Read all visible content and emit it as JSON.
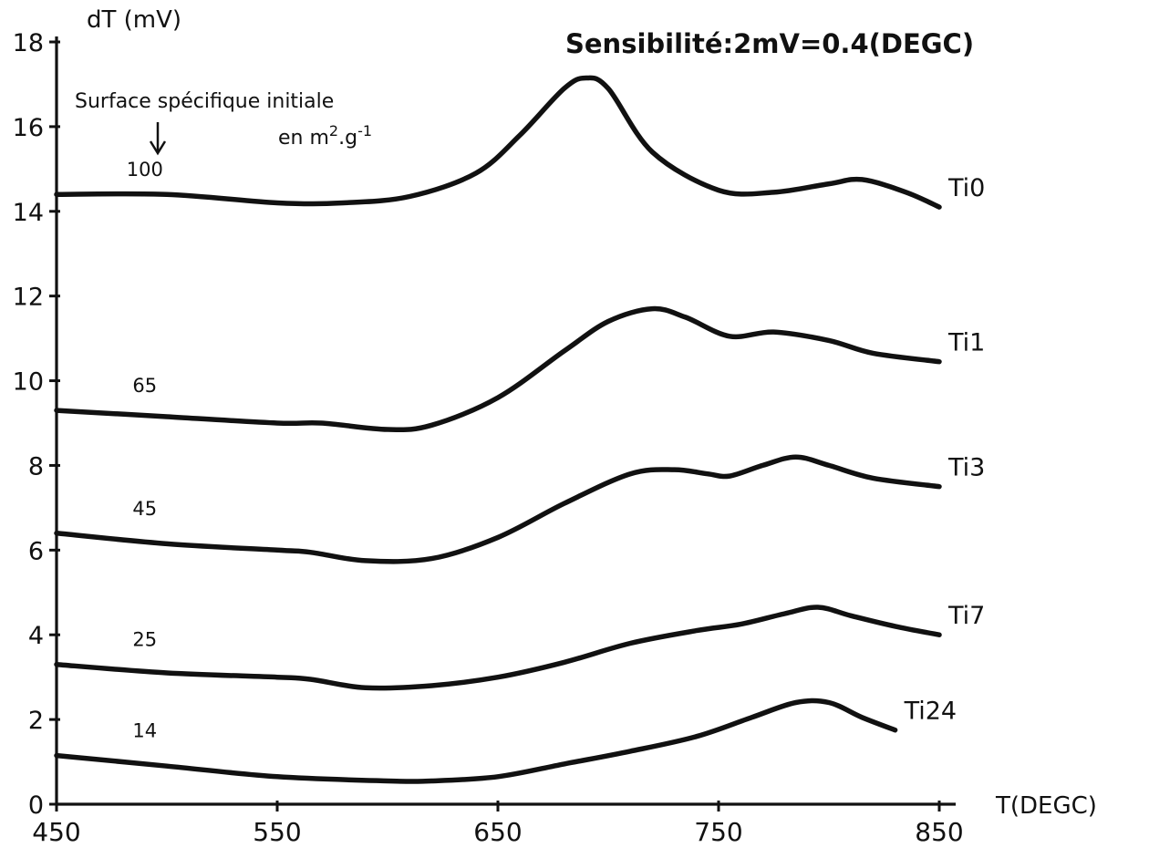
{
  "chart_data": {
    "type": "line",
    "title": "",
    "xlabel": "T(DEGC)",
    "ylabel": "dT (mV)",
    "annotation": "Sensibilité:2mV=0.4(DEGC)",
    "surface_note": {
      "line1": "Surface spécifique initiale",
      "line2_prefix": "en m",
      "line2_exp1": "2",
      "line2_mid": ".g",
      "line2_exp2": "-1"
    },
    "xlim": [
      450,
      850
    ],
    "ylim": [
      0,
      18
    ],
    "xticks": [
      "450",
      "550",
      "650",
      "750",
      "850"
    ],
    "yticks": [
      "0",
      "2",
      "4",
      "6",
      "8",
      "10",
      "12",
      "14",
      "16",
      "18"
    ],
    "grid": false,
    "series": [
      {
        "name": "Ti0",
        "surface": "100",
        "x": [
          450,
          500,
          550,
          580,
          610,
          640,
          660,
          680,
          690,
          700,
          720,
          750,
          775,
          800,
          815,
          835,
          850
        ],
        "y": [
          14.4,
          14.4,
          14.2,
          14.2,
          14.35,
          14.9,
          15.8,
          16.9,
          17.15,
          16.9,
          15.4,
          14.5,
          14.45,
          14.65,
          14.75,
          14.45,
          14.1
        ]
      },
      {
        "name": "Ti1",
        "surface": "65",
        "x": [
          450,
          500,
          550,
          570,
          600,
          620,
          650,
          680,
          700,
          720,
          735,
          755,
          775,
          800,
          820,
          850
        ],
        "y": [
          9.3,
          9.15,
          9.0,
          9.0,
          8.85,
          8.95,
          9.6,
          10.7,
          11.4,
          11.7,
          11.5,
          11.05,
          11.15,
          10.95,
          10.65,
          10.45
        ]
      },
      {
        "name": "Ti3",
        "surface": "45",
        "x": [
          450,
          500,
          550,
          565,
          590,
          620,
          650,
          680,
          710,
          730,
          745,
          755,
          770,
          785,
          800,
          820,
          850
        ],
        "y": [
          6.4,
          6.15,
          6.0,
          5.95,
          5.75,
          5.8,
          6.3,
          7.1,
          7.8,
          7.9,
          7.8,
          7.75,
          8.0,
          8.2,
          8.0,
          7.7,
          7.5
        ]
      },
      {
        "name": "Ti7",
        "surface": "25",
        "x": [
          450,
          500,
          550,
          565,
          590,
          620,
          650,
          680,
          710,
          740,
          760,
          780,
          795,
          810,
          830,
          850
        ],
        "y": [
          3.3,
          3.1,
          3.0,
          2.95,
          2.75,
          2.8,
          3.0,
          3.35,
          3.8,
          4.1,
          4.25,
          4.5,
          4.65,
          4.45,
          4.2,
          4.0
        ]
      },
      {
        "name": "Ti24",
        "surface": "14",
        "x": [
          450,
          500,
          550,
          600,
          620,
          650,
          680,
          710,
          740,
          765,
          785,
          800,
          815,
          830
        ],
        "y": [
          1.15,
          0.9,
          0.65,
          0.55,
          0.55,
          0.65,
          0.95,
          1.25,
          1.6,
          2.05,
          2.4,
          2.4,
          2.05,
          1.75
        ]
      }
    ]
  }
}
